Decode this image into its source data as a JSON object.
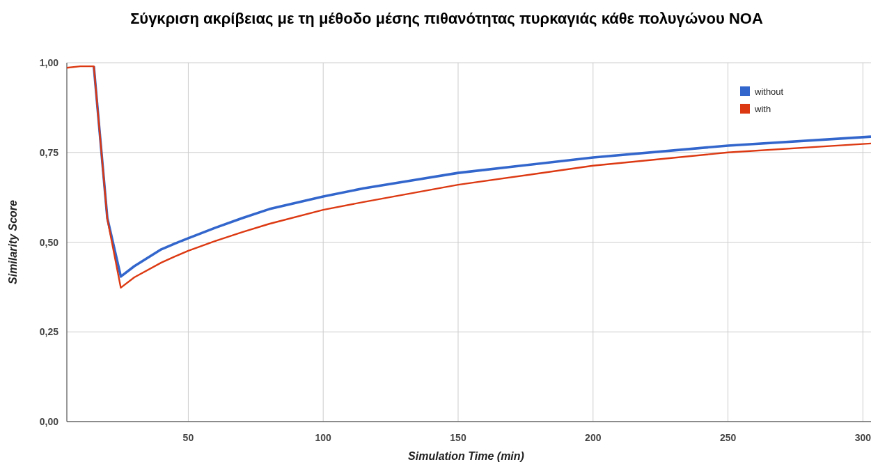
{
  "chart_data": {
    "type": "line",
    "title": "Σύγκριση ακρίβειας με τη μέθοδο μέσης πιθανότητας πυρκαγιάς κάθε πολυγώνου NOA",
    "xlabel": "Simulation Time (min)",
    "ylabel": "Similarity Score",
    "x": [
      5,
      10,
      15,
      20,
      25,
      30,
      40,
      45,
      50,
      60,
      70,
      80,
      100,
      115,
      150,
      200,
      250,
      303
    ],
    "series": [
      {
        "name": "without",
        "color": "#3366cc",
        "values": [
          null,
          null,
          0.99,
          0.567,
          0.404,
          0.433,
          0.48,
          0.496,
          0.511,
          0.54,
          0.567,
          0.592,
          0.627,
          0.65,
          0.693,
          0.736,
          0.769,
          0.794
        ]
      },
      {
        "name": "with",
        "color": "#dc3912",
        "values": [
          0.986,
          0.99,
          0.99,
          0.565,
          0.373,
          0.402,
          0.443,
          0.46,
          0.476,
          0.503,
          0.528,
          0.551,
          0.59,
          0.612,
          0.66,
          0.713,
          0.75,
          0.775
        ]
      }
    ],
    "xlim": [
      5,
      303
    ],
    "xticks": [
      50,
      100,
      150,
      200,
      250,
      300
    ],
    "ylim": [
      0,
      1
    ],
    "yticks": [
      {
        "value": 0,
        "label": "0,00"
      },
      {
        "value": 0.25,
        "label": "0,25"
      },
      {
        "value": 0.5,
        "label": "0,50"
      },
      {
        "value": 0.75,
        "label": "0,75"
      },
      {
        "value": 1,
        "label": "1,00"
      }
    ],
    "grid": true,
    "legend": "top right",
    "marker": "none",
    "line_style": "solid"
  }
}
